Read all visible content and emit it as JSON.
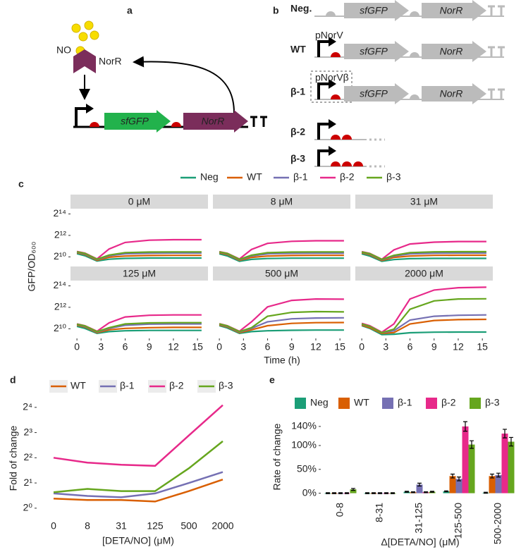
{
  "panel_labels": [
    "a",
    "b",
    "c",
    "d",
    "e"
  ],
  "diagram_a": {
    "ligand": "NO",
    "protein": "NorR",
    "genes": [
      "sfGFP",
      "NorR"
    ]
  },
  "diagram_b": {
    "rows": [
      {
        "label": "Neg.",
        "genes": [
          "sfGFP",
          "NorR"
        ]
      },
      {
        "label": "WT",
        "promoter": "pNorV",
        "genes": [
          "sfGFP",
          "NorR"
        ]
      },
      {
        "label": "β-1",
        "promoter": "pNorVβ",
        "genes": [
          "sfGFP",
          "NorR"
        ]
      },
      {
        "label": "β-2"
      },
      {
        "label": "β-3"
      }
    ]
  },
  "chart_data": [
    {
      "type": "line",
      "facets": [
        "0 μM",
        "8 μM",
        "31 μM",
        "125 μM",
        "500 μM",
        "2000 μM"
      ],
      "x_label": "Time (h)",
      "y_label": "GFP/OD₆₀₀",
      "x": [
        0,
        1,
        2.5,
        4,
        6,
        9,
        12,
        15.5
      ],
      "xlim": [
        -0.8,
        16.3
      ],
      "xticks": [
        0,
        3,
        6,
        9,
        12,
        15
      ],
      "log_scale": "y",
      "ylim": [
        550,
        23000
      ],
      "yticks": [
        {
          "value": 1024,
          "label": "2¹⁰"
        },
        {
          "value": 4096,
          "label": "2¹²"
        },
        {
          "value": 16384,
          "label": "2¹⁴"
        }
      ],
      "legend": "top",
      "series": [
        {
          "name": "Neg",
          "color": "#1b9e77",
          "values": [
            [
              1260,
              1100,
              780,
              880,
              930,
              950,
              950,
              950
            ],
            [
              1250,
              1090,
              770,
              870,
              920,
              940,
              940,
              940
            ],
            [
              1240,
              1080,
              770,
              860,
              910,
              930,
              930,
              930
            ],
            [
              1200,
              1050,
              760,
              850,
              900,
              920,
              920,
              920
            ],
            [
              1250,
              1080,
              760,
              850,
              900,
              930,
              940,
              940
            ],
            [
              1250,
              1050,
              700,
              720,
              790,
              820,
              830,
              830
            ]
          ]
        },
        {
          "name": "WT",
          "color": "#d95f02",
          "values": [
            [
              1350,
              1200,
              820,
              1000,
              1080,
              1120,
              1130,
              1130
            ],
            [
              1340,
              1190,
              820,
              990,
              1080,
              1120,
              1130,
              1130
            ],
            [
              1330,
              1180,
              810,
              990,
              1080,
              1130,
              1140,
              1140
            ],
            [
              1300,
              1150,
              800,
              960,
              1050,
              1100,
              1120,
              1120
            ],
            [
              1320,
              1150,
              800,
              960,
              1250,
              1450,
              1520,
              1530
            ],
            [
              1300,
              1100,
              760,
              800,
              1400,
              1750,
              1850,
              1880
            ]
          ]
        },
        {
          "name": "β-1",
          "color": "#7570b3",
          "values": [
            [
              1400,
              1250,
              860,
              1100,
              1250,
              1300,
              1310,
              1310
            ],
            [
              1390,
              1240,
              850,
              1090,
              1240,
              1290,
              1300,
              1300
            ],
            [
              1380,
              1230,
              850,
              1080,
              1240,
              1300,
              1310,
              1310
            ],
            [
              1360,
              1200,
              830,
              1050,
              1280,
              1380,
              1400,
              1400
            ],
            [
              1380,
              1200,
              830,
              1050,
              1600,
              1950,
              2050,
              2080
            ],
            [
              1380,
              1180,
              800,
              900,
              1800,
              2300,
              2450,
              2500
            ]
          ]
        },
        {
          "name": "β-2",
          "color": "#e7298a",
          "values": [
            [
              1450,
              1300,
              900,
              1700,
              2600,
              3000,
              3100,
              3100
            ],
            [
              1440,
              1290,
              890,
              1650,
              2450,
              2800,
              2900,
              2900
            ],
            [
              1430,
              1280,
              880,
              1600,
              2350,
              2650,
              2750,
              2750
            ],
            [
              1400,
              1250,
              870,
              1500,
              2200,
              2450,
              2500,
              2500
            ],
            [
              1420,
              1250,
              870,
              1600,
              4200,
              6400,
              7000,
              6900
            ],
            [
              1450,
              1250,
              820,
              1400,
              7000,
              12500,
              14500,
              15000
            ]
          ]
        },
        {
          "name": "β-3",
          "color": "#66a61e",
          "values": [
            [
              1420,
              1280,
              880,
              1150,
              1350,
              1400,
              1410,
              1410
            ],
            [
              1410,
              1270,
              870,
              1140,
              1340,
              1400,
              1410,
              1410
            ],
            [
              1400,
              1260,
              870,
              1130,
              1350,
              1420,
              1430,
              1430
            ],
            [
              1380,
              1230,
              850,
              1100,
              1400,
              1500,
              1520,
              1520
            ],
            [
              1400,
              1230,
              850,
              1100,
              2300,
              2950,
              3100,
              3050
            ],
            [
              1400,
              1200,
              800,
              1000,
              3600,
              6200,
              7000,
              7100
            ]
          ]
        }
      ]
    },
    {
      "type": "line",
      "categories": [
        "0",
        "8",
        "31",
        "125",
        "500",
        "2000"
      ],
      "x_label": "[DETA/NO] (μM)",
      "y_label": "Fold of change",
      "log_scale": "y",
      "ylim": [
        0.76,
        22.6
      ],
      "yticks": [
        {
          "value": 1,
          "label": "2⁰"
        },
        {
          "value": 2,
          "label": "2¹"
        },
        {
          "value": 4,
          "label": "2²"
        },
        {
          "value": 8,
          "label": "2³"
        },
        {
          "value": 16,
          "label": "2⁴"
        }
      ],
      "legend": "top",
      "series": [
        {
          "name": "WT",
          "color": "#d95f02",
          "values": [
            1.3,
            1.25,
            1.25,
            1.2,
            1.6,
            2.2
          ]
        },
        {
          "name": "β-1",
          "color": "#7570b3",
          "values": [
            1.5,
            1.4,
            1.35,
            1.5,
            2.0,
            2.7
          ]
        },
        {
          "name": "β-2",
          "color": "#e7298a",
          "values": [
            4.0,
            3.5,
            3.3,
            3.2,
            7.4,
            17
          ]
        },
        {
          "name": "β-3",
          "color": "#66a61e",
          "values": [
            1.55,
            1.7,
            1.6,
            1.6,
            3.0,
            6.3
          ]
        }
      ]
    },
    {
      "type": "bar",
      "categories": [
        "0-8",
        "8-31",
        "31-125",
        "125-500",
        "500-2000"
      ],
      "x_label": "Δ[DETA/NO] (μM)",
      "y_label": "Rate of change",
      "ylim": [
        -8,
        162
      ],
      "yticks": [
        {
          "value": 0,
          "label": "0%"
        },
        {
          "value": 50,
          "label": "50%"
        },
        {
          "value": 100,
          "label": "100%"
        },
        {
          "value": 140,
          "label": "140%"
        }
      ],
      "legend": "top",
      "series": [
        {
          "name": "Neg",
          "color": "#1b9e77",
          "values": [
            0,
            0,
            3,
            4,
            1
          ],
          "errors": [
            1,
            1,
            1,
            1,
            1
          ]
        },
        {
          "name": "WT",
          "color": "#d95f02",
          "values": [
            0,
            0,
            2,
            36,
            36
          ],
          "errors": [
            1,
            1,
            1,
            4,
            4
          ]
        },
        {
          "name": "β-1",
          "color": "#7570b3",
          "values": [
            0,
            0,
            18,
            30,
            38
          ],
          "errors": [
            1,
            1,
            3,
            4,
            4
          ]
        },
        {
          "name": "β-2",
          "color": "#e7298a",
          "values": [
            0,
            0,
            2,
            140,
            125
          ],
          "errors": [
            1,
            1,
            1,
            10,
            9
          ]
        },
        {
          "name": "β-3",
          "color": "#66a61e",
          "values": [
            8,
            0,
            3,
            102,
            108
          ],
          "errors": [
            2,
            1,
            1,
            8,
            9
          ]
        }
      ]
    }
  ]
}
